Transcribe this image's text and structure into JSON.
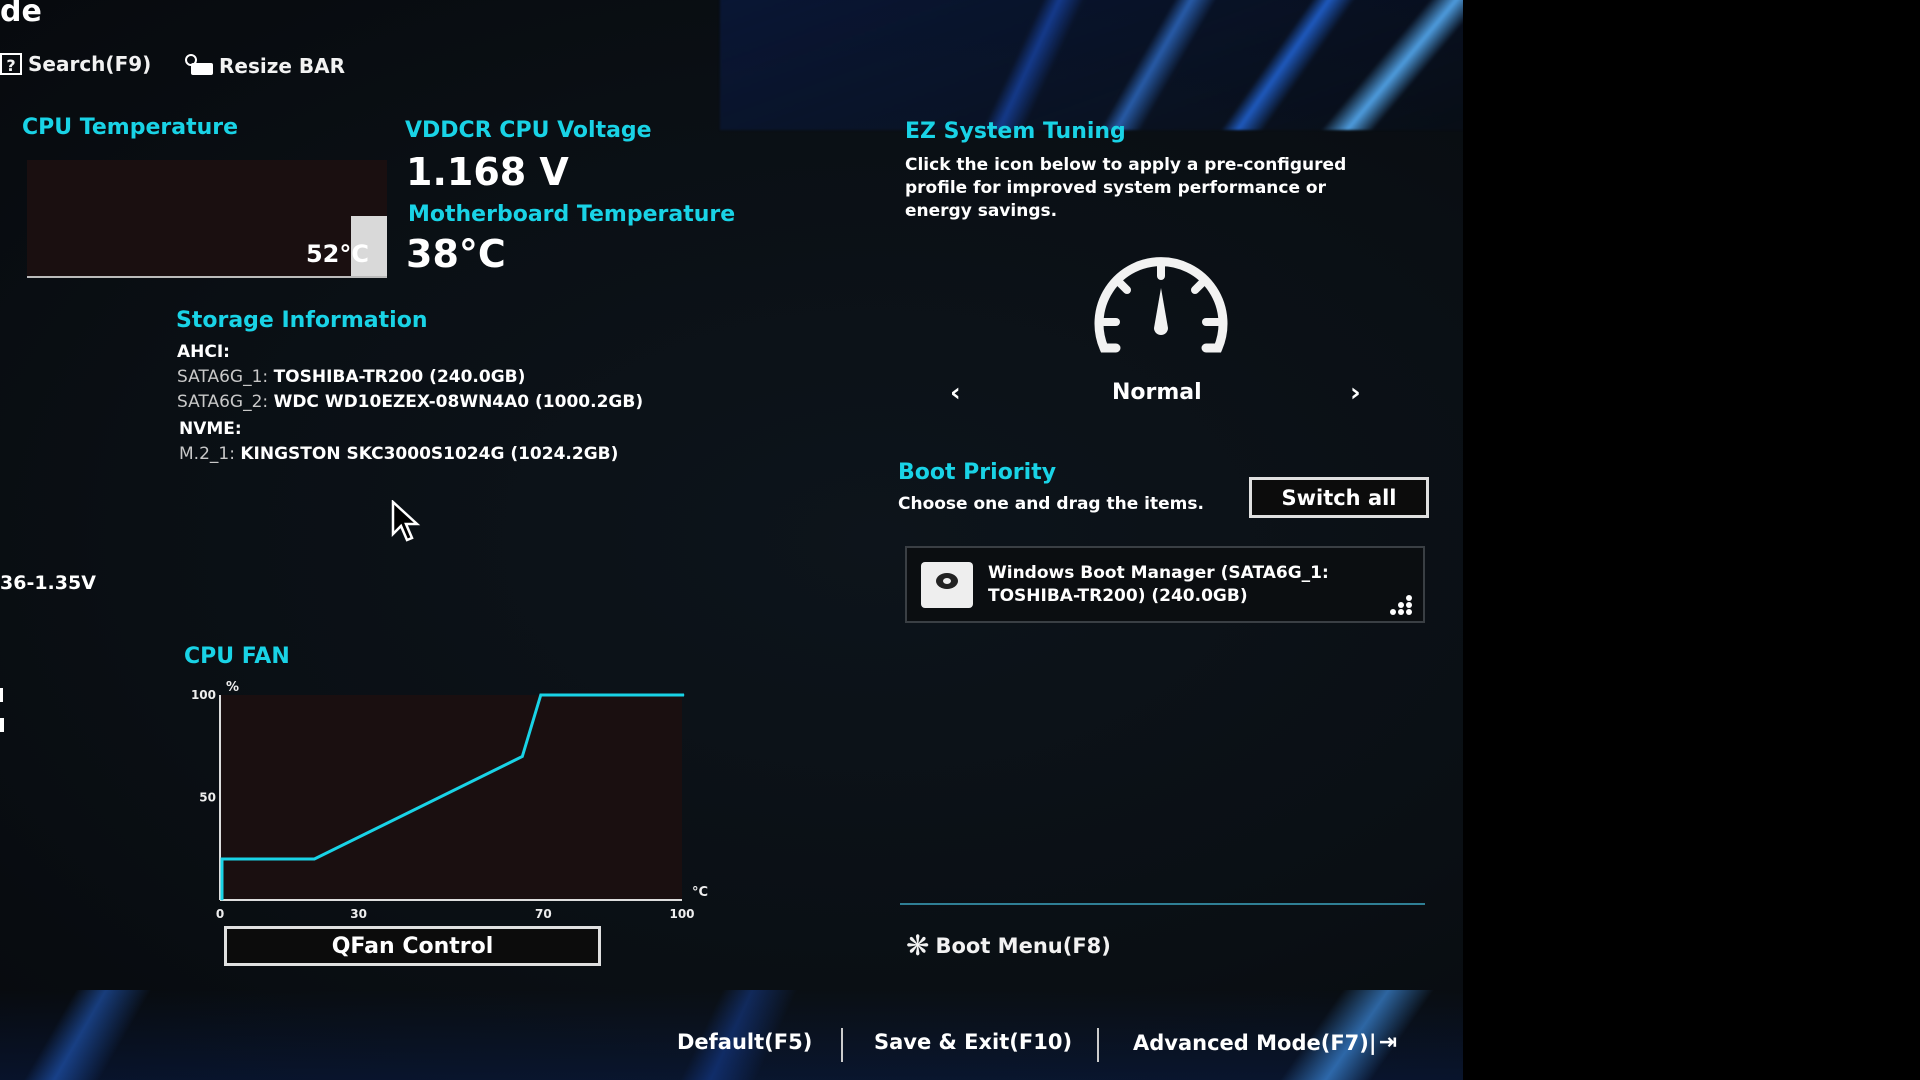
{
  "header": {
    "title_fragment": "de",
    "search_label": "Search(F9)",
    "resize_bar_label": "Resize BAR"
  },
  "cpu_temp": {
    "title": "CPU Temperature",
    "value": "52°C",
    "level_celsius": 52
  },
  "voltage": {
    "title": "VDDCR CPU Voltage",
    "value": "1.168 V"
  },
  "mb_temp": {
    "title": "Motherboard Temperature",
    "value": "38°C"
  },
  "storage": {
    "title": "Storage Information",
    "ahci_label": "AHCI:",
    "ahci": [
      {
        "port": "SATA6G_1:",
        "device": "TOSHIBA-TR200 (240.0GB)"
      },
      {
        "port": "SATA6G_2:",
        "device": "WDC WD10EZEX-08WN4A0 (1000.2GB)"
      }
    ],
    "nvme_label": "NVME:",
    "nvme": [
      {
        "port": "M.2_1:",
        "device": "KINGSTON SKC3000S1024G (1024.2GB)"
      }
    ]
  },
  "left_edge": {
    "dram_voltage_fragment": "36-1.35V"
  },
  "cpu_fan": {
    "title": "CPU FAN",
    "qfan_button": "QFan Control"
  },
  "chart_data": {
    "type": "line",
    "title": "CPU FAN",
    "ylabel": "%",
    "xlabel": "°C",
    "xlim": [
      0,
      100
    ],
    "ylim": [
      0,
      100
    ],
    "x_ticks": [
      "0",
      "30",
      "70",
      "100"
    ],
    "y_ticks": [
      "100",
      "50"
    ],
    "x": [
      0,
      0,
      20,
      65,
      69,
      100
    ],
    "y": [
      0,
      20,
      20,
      70,
      100,
      100
    ],
    "line_color": "#19d3e6"
  },
  "ez_tuning": {
    "title": "EZ System Tuning",
    "description_lines": [
      "Click the icon below to apply a pre-configured",
      "profile for improved system performance or",
      "energy savings."
    ],
    "profile": "Normal"
  },
  "boot_priority": {
    "title": "Boot Priority",
    "hint": "Choose one and drag the items.",
    "switch_all": "Switch all",
    "items": [
      {
        "line1": "Windows Boot Manager (SATA6G_1:",
        "line2": "TOSHIBA-TR200) (240.0GB)"
      }
    ]
  },
  "boot_menu": "Boot Menu(F8)",
  "footer": {
    "default": "Default(F5)",
    "save_exit": "Save & Exit(F10)",
    "advanced": "Advanced Mode(F7)|"
  },
  "colors": {
    "accent": "#19d3e6",
    "background": "#0a0f14"
  }
}
